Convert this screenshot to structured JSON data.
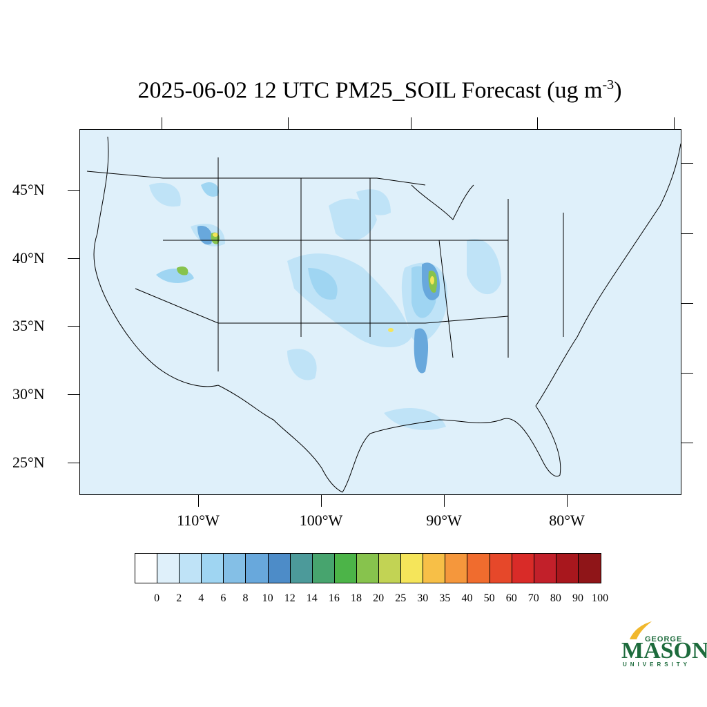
{
  "title": {
    "text": "2025-06-02 12 UTC PM25_SOIL Forecast (ug m",
    "superscript": "-3",
    "closing": ")"
  },
  "map": {
    "region": "Continental United States",
    "background_color": "#dff0fa",
    "latitude_labels": [
      "45°N",
      "40°N",
      "35°N",
      "30°N",
      "25°N"
    ],
    "longitude_labels": [
      "110°W",
      "100°W",
      "90°W",
      "80°W"
    ]
  },
  "colorbar": {
    "labels": [
      "0",
      "2",
      "4",
      "6",
      "8",
      "10",
      "12",
      "14",
      "16",
      "18",
      "20",
      "25",
      "30",
      "35",
      "40",
      "50",
      "60",
      "70",
      "80",
      "90",
      "100"
    ],
    "colors": [
      "#ffffff",
      "#dff0fa",
      "#bfe3f7",
      "#9fd5f2",
      "#84bfe6",
      "#68a8dc",
      "#4d8cc8",
      "#4c9a9a",
      "#47a46e",
      "#4cb448",
      "#87c34d",
      "#c2d354",
      "#f5e55a",
      "#f7bf47",
      "#f5973c",
      "#f06c2e",
      "#e6482a",
      "#d92b28",
      "#c2202a",
      "#a8171d",
      "#8f1518"
    ]
  },
  "logo": {
    "line1": "GEORGE",
    "line2": "MASON",
    "line3": "UNIVERSITY",
    "color": "#1d6b3c"
  }
}
